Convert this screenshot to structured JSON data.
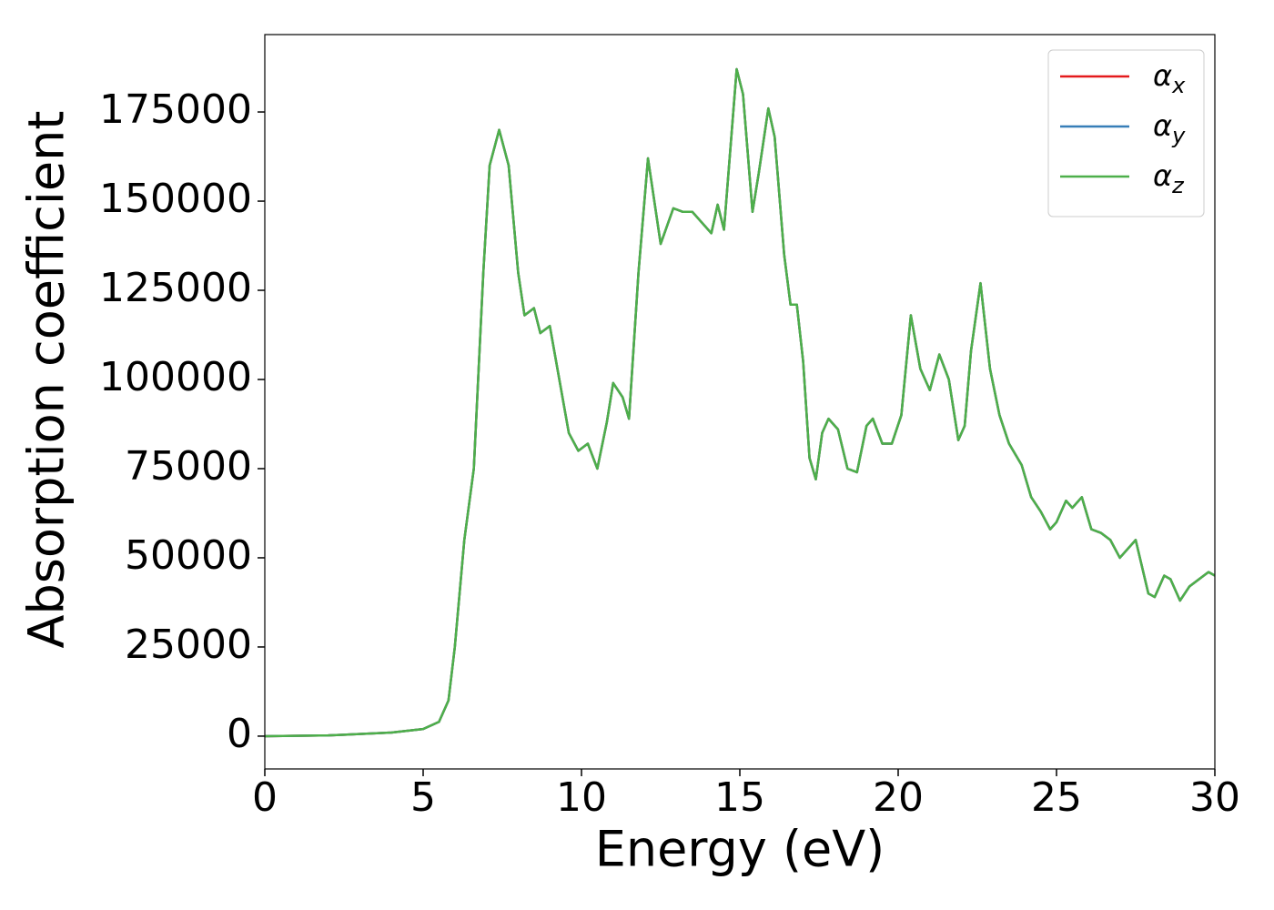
{
  "chart_data": {
    "type": "line",
    "xlabel": "Energy (eV)",
    "ylabel": "Absorption coefficient",
    "x": [
      0,
      2,
      4,
      5,
      5.5,
      5.8,
      6,
      6.3,
      6.6,
      6.9,
      7.1,
      7.4,
      7.7,
      8.0,
      8.2,
      8.5,
      8.7,
      9.0,
      9.3,
      9.6,
      9.9,
      10.2,
      10.5,
      10.8,
      11.0,
      11.3,
      11.5,
      11.8,
      12.1,
      12.3,
      12.5,
      12.9,
      13.2,
      13.5,
      13.8,
      14.1,
      14.3,
      14.5,
      14.9,
      15.1,
      15.4,
      15.6,
      15.9,
      16.1,
      16.4,
      16.6,
      16.8,
      17.0,
      17.2,
      17.4,
      17.6,
      17.8,
      18.1,
      18.4,
      18.7,
      19.0,
      19.2,
      19.5,
      19.8,
      20.1,
      20.4,
      20.7,
      21.0,
      21.3,
      21.6,
      21.9,
      22.1,
      22.3,
      22.6,
      22.9,
      23.2,
      23.5,
      23.9,
      24.2,
      24.5,
      24.8,
      25.0,
      25.3,
      25.5,
      25.8,
      26.1,
      26.4,
      26.7,
      27.0,
      27.3,
      27.5,
      27.9,
      28.1,
      28.4,
      28.6,
      28.9,
      29.2,
      29.5,
      29.8,
      30
    ],
    "series": [
      {
        "name": "αx",
        "color": "#e41a1c",
        "values": [
          0,
          200,
          1000,
          2000,
          4000,
          10000,
          25000,
          55000,
          75000,
          130000,
          160000,
          170000,
          160000,
          130000,
          118000,
          120000,
          113000,
          115000,
          100000,
          85000,
          80000,
          82000,
          75000,
          88000,
          99000,
          95000,
          89000,
          130000,
          162000,
          150000,
          138000,
          148000,
          147000,
          147000,
          144000,
          141000,
          149000,
          142000,
          187000,
          180000,
          147000,
          158000,
          176000,
          168000,
          135000,
          121000,
          121000,
          105000,
          78000,
          72000,
          85000,
          89000,
          86000,
          75000,
          74000,
          87000,
          89000,
          82000,
          82000,
          90000,
          118000,
          103000,
          97000,
          107000,
          100000,
          83000,
          87000,
          108000,
          127000,
          103000,
          90000,
          82000,
          76000,
          67000,
          63000,
          58000,
          60000,
          66000,
          64000,
          67000,
          58000,
          57000,
          55000,
          50000,
          53000,
          55000,
          40000,
          39000,
          45000,
          44000,
          38000,
          42000,
          44000,
          46000,
          45000
        ]
      },
      {
        "name": "αy",
        "color": "#377eb8",
        "values": [
          0,
          200,
          1000,
          2000,
          4000,
          10000,
          25000,
          55000,
          75000,
          130000,
          160000,
          170000,
          160000,
          130000,
          118000,
          120000,
          113000,
          115000,
          100000,
          85000,
          80000,
          82000,
          75000,
          88000,
          99000,
          95000,
          89000,
          130000,
          162000,
          150000,
          138000,
          148000,
          147000,
          147000,
          144000,
          141000,
          149000,
          142000,
          187000,
          180000,
          147000,
          158000,
          176000,
          168000,
          135000,
          121000,
          121000,
          105000,
          78000,
          72000,
          85000,
          89000,
          86000,
          75000,
          74000,
          87000,
          89000,
          82000,
          82000,
          90000,
          118000,
          103000,
          97000,
          107000,
          100000,
          83000,
          87000,
          108000,
          127000,
          103000,
          90000,
          82000,
          76000,
          67000,
          63000,
          58000,
          60000,
          66000,
          64000,
          67000,
          58000,
          57000,
          55000,
          50000,
          53000,
          55000,
          40000,
          39000,
          45000,
          44000,
          38000,
          42000,
          44000,
          46000,
          45000
        ]
      },
      {
        "name": "αz",
        "color": "#4daf4a",
        "values": [
          0,
          200,
          1000,
          2000,
          4000,
          10000,
          25000,
          55000,
          75000,
          130000,
          160000,
          170000,
          160000,
          130000,
          118000,
          120000,
          113000,
          115000,
          100000,
          85000,
          80000,
          82000,
          75000,
          88000,
          99000,
          95000,
          89000,
          130000,
          162000,
          150000,
          138000,
          148000,
          147000,
          147000,
          144000,
          141000,
          149000,
          142000,
          187000,
          180000,
          147000,
          158000,
          176000,
          168000,
          135000,
          121000,
          121000,
          105000,
          78000,
          72000,
          85000,
          89000,
          86000,
          75000,
          74000,
          87000,
          89000,
          82000,
          82000,
          90000,
          118000,
          103000,
          97000,
          107000,
          100000,
          83000,
          87000,
          108000,
          127000,
          103000,
          90000,
          82000,
          76000,
          67000,
          63000,
          58000,
          60000,
          66000,
          64000,
          67000,
          58000,
          57000,
          55000,
          50000,
          53000,
          55000,
          40000,
          39000,
          45000,
          44000,
          38000,
          42000,
          44000,
          46000,
          45000
        ]
      }
    ],
    "xlim": [
      0,
      30
    ],
    "xticks": [
      0,
      5,
      10,
      15,
      20,
      25,
      30
    ],
    "ylim": [
      -9200,
      196700
    ],
    "yticks": [
      0,
      25000,
      50000,
      75000,
      100000,
      125000,
      150000,
      175000
    ],
    "grid": false,
    "legend": "upper right"
  }
}
